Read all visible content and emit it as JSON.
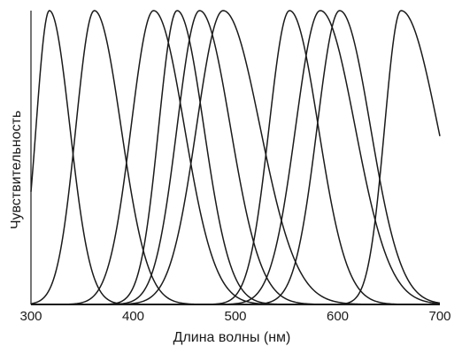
{
  "chart_data": {
    "type": "line",
    "title": "",
    "xlabel": "Длина волны (нм)",
    "ylabel": "Чувствительность",
    "xlim": [
      300,
      700
    ],
    "ylim": [
      0,
      1
    ],
    "x_ticks": [
      300,
      400,
      500,
      600,
      700
    ],
    "y_ticks_shown": false,
    "grid": false,
    "legend": "none",
    "line_color": "#1a1a1a",
    "series": [
      {
        "peak": 318,
        "sd_left": 13,
        "sd_right": 20
      },
      {
        "peak": 362,
        "sd_left": 18,
        "sd_right": 26
      },
      {
        "peak": 420,
        "sd_left": 22,
        "sd_right": 30
      },
      {
        "peak": 443,
        "sd_left": 18,
        "sd_right": 26
      },
      {
        "peak": 465,
        "sd_left": 22,
        "sd_right": 30
      },
      {
        "peak": 488,
        "sd_left": 26,
        "sd_right": 36
      },
      {
        "peak": 553,
        "sd_left": 20,
        "sd_right": 28
      },
      {
        "peak": 583,
        "sd_left": 24,
        "sd_right": 34
      },
      {
        "peak": 602,
        "sd_left": 22,
        "sd_right": 30
      },
      {
        "peak": 662,
        "sd_left": 16,
        "sd_right": 36
      }
    ]
  }
}
